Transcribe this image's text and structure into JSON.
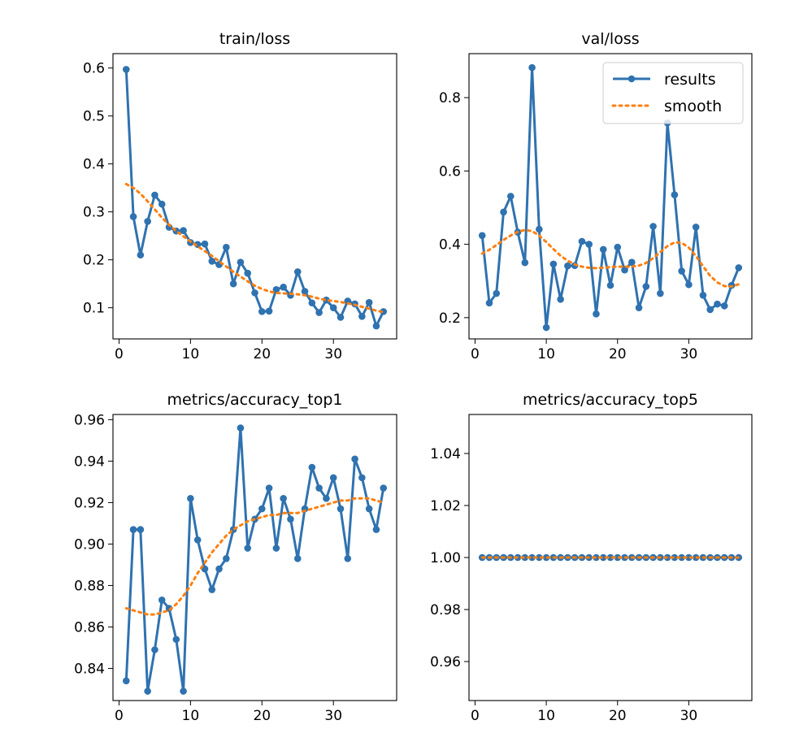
{
  "colors": {
    "results": "#2f72b0",
    "smooth": "#ff7f0e",
    "frame": "#000000"
  },
  "legend": {
    "entries": [
      "results",
      "smooth"
    ],
    "placement": "upper-right of val/loss panel"
  },
  "chart_data": [
    {
      "id": "train-loss",
      "type": "line",
      "title": "train/loss",
      "xlim": [
        -0.85,
        38.85
      ],
      "ylim": [
        0.035,
        0.63
      ],
      "xticks": [
        0,
        10,
        20,
        30
      ],
      "xtick_labels": [
        "0",
        "10",
        "20",
        "30"
      ],
      "yticks": [
        0.1,
        0.2,
        0.3,
        0.4,
        0.5,
        0.6
      ],
      "ytick_labels": [
        "0.1",
        "0.2",
        "0.3",
        "0.4",
        "0.5",
        "0.6"
      ],
      "x": [
        1,
        2,
        3,
        4,
        5,
        6,
        7,
        8,
        9,
        10,
        11,
        12,
        13,
        14,
        15,
        16,
        17,
        18,
        19,
        20,
        21,
        22,
        23,
        24,
        25,
        26,
        27,
        28,
        29,
        30,
        31,
        32,
        33,
        34,
        35,
        36,
        37
      ],
      "series": [
        {
          "name": "results",
          "style": "solid-markers",
          "values": [
            0.597,
            0.29,
            0.21,
            0.28,
            0.335,
            0.316,
            0.268,
            0.26,
            0.261,
            0.236,
            0.232,
            0.233,
            0.197,
            0.19,
            0.226,
            0.15,
            0.195,
            0.172,
            0.131,
            0.092,
            0.093,
            0.138,
            0.143,
            0.126,
            0.175,
            0.134,
            0.11,
            0.09,
            0.116,
            0.1,
            0.08,
            0.114,
            0.108,
            0.082,
            0.111,
            0.062,
            0.092
          ]
        },
        {
          "name": "smooth",
          "style": "dotted",
          "values": [
            0.358,
            0.35,
            0.338,
            0.322,
            0.305,
            0.288,
            0.273,
            0.26,
            0.249,
            0.238,
            0.228,
            0.218,
            0.208,
            0.197,
            0.186,
            0.175,
            0.165,
            0.155,
            0.146,
            0.139,
            0.134,
            0.131,
            0.13,
            0.129,
            0.128,
            0.126,
            0.123,
            0.119,
            0.116,
            0.114,
            0.112,
            0.109,
            0.106,
            0.102,
            0.098,
            0.094,
            0.091
          ]
        }
      ]
    },
    {
      "id": "val-loss",
      "type": "line",
      "title": "val/loss",
      "xlim": [
        -0.85,
        38.85
      ],
      "ylim": [
        0.142,
        0.92
      ],
      "xticks": [
        0,
        10,
        20,
        30
      ],
      "xtick_labels": [
        "0",
        "10",
        "20",
        "30"
      ],
      "yticks": [
        0.2,
        0.4,
        0.6,
        0.8
      ],
      "ytick_labels": [
        "0.2",
        "0.4",
        "0.6",
        "0.8"
      ],
      "x": [
        1,
        2,
        3,
        4,
        5,
        6,
        7,
        8,
        9,
        10,
        11,
        12,
        13,
        14,
        15,
        16,
        17,
        18,
        19,
        20,
        21,
        22,
        23,
        24,
        25,
        26,
        27,
        28,
        29,
        30,
        31,
        32,
        33,
        34,
        35,
        36,
        37
      ],
      "series": [
        {
          "name": "results",
          "style": "solid-markers",
          "values": [
            0.424,
            0.24,
            0.266,
            0.488,
            0.531,
            0.433,
            0.35,
            0.882,
            0.441,
            0.173,
            0.346,
            0.25,
            0.341,
            0.342,
            0.408,
            0.4,
            0.21,
            0.386,
            0.288,
            0.392,
            0.33,
            0.351,
            0.227,
            0.285,
            0.449,
            0.266,
            0.731,
            0.535,
            0.327,
            0.29,
            0.447,
            0.261,
            0.222,
            0.237,
            0.232,
            0.288,
            0.336
          ]
        },
        {
          "name": "smooth",
          "style": "dotted",
          "values": [
            0.375,
            0.385,
            0.398,
            0.412,
            0.424,
            0.434,
            0.439,
            0.436,
            0.424,
            0.406,
            0.387,
            0.369,
            0.355,
            0.345,
            0.339,
            0.336,
            0.335,
            0.336,
            0.338,
            0.339,
            0.339,
            0.339,
            0.342,
            0.349,
            0.362,
            0.379,
            0.395,
            0.405,
            0.404,
            0.391,
            0.368,
            0.34,
            0.314,
            0.296,
            0.286,
            0.285,
            0.291
          ]
        }
      ]
    },
    {
      "id": "accuracy-top1",
      "type": "line",
      "title": "metrics/accuracy_top1",
      "xlim": [
        -0.85,
        38.85
      ],
      "ylim": [
        0.8245,
        0.9625
      ],
      "xticks": [
        0,
        10,
        20,
        30
      ],
      "xtick_labels": [
        "0",
        "10",
        "20",
        "30"
      ],
      "yticks": [
        0.84,
        0.86,
        0.88,
        0.9,
        0.92,
        0.94,
        0.96
      ],
      "ytick_labels": [
        "0.84",
        "0.86",
        "0.88",
        "0.90",
        "0.92",
        "0.94",
        "0.96"
      ],
      "x": [
        1,
        2,
        3,
        4,
        5,
        6,
        7,
        8,
        9,
        10,
        11,
        12,
        13,
        14,
        15,
        16,
        17,
        18,
        19,
        20,
        21,
        22,
        23,
        24,
        25,
        26,
        27,
        28,
        29,
        30,
        31,
        32,
        33,
        34,
        35,
        36,
        37
      ],
      "series": [
        {
          "name": "results",
          "style": "solid-markers",
          "values": [
            0.834,
            0.907,
            0.907,
            0.829,
            0.849,
            0.873,
            0.869,
            0.854,
            0.829,
            0.922,
            0.902,
            0.888,
            0.878,
            0.888,
            0.893,
            0.907,
            0.956,
            0.898,
            0.912,
            0.917,
            0.927,
            0.898,
            0.922,
            0.912,
            0.893,
            0.917,
            0.937,
            0.927,
            0.922,
            0.932,
            0.917,
            0.893,
            0.941,
            0.932,
            0.917,
            0.907,
            0.927
          ]
        },
        {
          "name": "smooth",
          "style": "dotted",
          "values": [
            0.869,
            0.868,
            0.867,
            0.866,
            0.866,
            0.867,
            0.868,
            0.871,
            0.875,
            0.88,
            0.886,
            0.891,
            0.896,
            0.9,
            0.904,
            0.907,
            0.909,
            0.911,
            0.912,
            0.913,
            0.914,
            0.914,
            0.915,
            0.915,
            0.915,
            0.916,
            0.917,
            0.918,
            0.919,
            0.92,
            0.921,
            0.921,
            0.922,
            0.922,
            0.922,
            0.921,
            0.92
          ]
        }
      ]
    },
    {
      "id": "accuracy-top5",
      "type": "line",
      "title": "metrics/accuracy_top5",
      "xlim": [
        -0.85,
        38.85
      ],
      "ylim": [
        0.945,
        1.055
      ],
      "xticks": [
        0,
        10,
        20,
        30
      ],
      "xtick_labels": [
        "0",
        "10",
        "20",
        "30"
      ],
      "yticks": [
        0.96,
        0.98,
        1.0,
        1.02,
        1.04
      ],
      "ytick_labels": [
        "0.96",
        "0.98",
        "1.00",
        "1.02",
        "1.04"
      ],
      "x": [
        1,
        2,
        3,
        4,
        5,
        6,
        7,
        8,
        9,
        10,
        11,
        12,
        13,
        14,
        15,
        16,
        17,
        18,
        19,
        20,
        21,
        22,
        23,
        24,
        25,
        26,
        27,
        28,
        29,
        30,
        31,
        32,
        33,
        34,
        35,
        36,
        37
      ],
      "series": [
        {
          "name": "results",
          "style": "solid-markers",
          "values": [
            1,
            1,
            1,
            1,
            1,
            1,
            1,
            1,
            1,
            1,
            1,
            1,
            1,
            1,
            1,
            1,
            1,
            1,
            1,
            1,
            1,
            1,
            1,
            1,
            1,
            1,
            1,
            1,
            1,
            1,
            1,
            1,
            1,
            1,
            1,
            1,
            1
          ]
        },
        {
          "name": "smooth",
          "style": "dotted",
          "values": [
            1,
            1,
            1,
            1,
            1,
            1,
            1,
            1,
            1,
            1,
            1,
            1,
            1,
            1,
            1,
            1,
            1,
            1,
            1,
            1,
            1,
            1,
            1,
            1,
            1,
            1,
            1,
            1,
            1,
            1,
            1,
            1,
            1,
            1,
            1,
            1,
            1
          ]
        }
      ]
    }
  ]
}
